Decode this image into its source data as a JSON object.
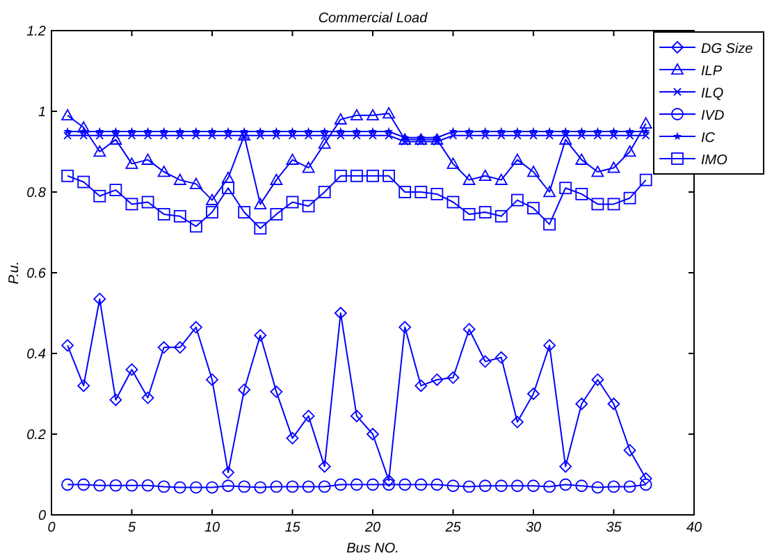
{
  "chart_data": {
    "type": "line",
    "title": "Commercial Load",
    "xlabel": "Bus NO.",
    "ylabel": "P.u.",
    "x": [
      1,
      2,
      3,
      4,
      5,
      6,
      7,
      8,
      9,
      10,
      11,
      12,
      13,
      14,
      15,
      16,
      17,
      18,
      19,
      20,
      21,
      22,
      23,
      24,
      25,
      26,
      27,
      28,
      29,
      30,
      31,
      32,
      33,
      34,
      35,
      36,
      37
    ],
    "series": [
      {
        "name": "DG Size",
        "color": "#0000ff",
        "marker": "diamond",
        "values": [
          0.42,
          0.32,
          0.535,
          0.285,
          0.36,
          0.29,
          0.415,
          0.415,
          0.465,
          0.335,
          0.105,
          0.31,
          0.445,
          0.305,
          0.19,
          0.245,
          0.12,
          0.5,
          0.245,
          0.2,
          0.085,
          0.465,
          0.32,
          0.335,
          0.34,
          0.46,
          0.38,
          0.39,
          0.23,
          0.3,
          0.42,
          0.12,
          0.275,
          0.335,
          0.275,
          0.16,
          0.09
        ]
      },
      {
        "name": "ILP",
        "color": "#0000ff",
        "marker": "triangle",
        "values": [
          0.99,
          0.96,
          0.9,
          0.93,
          0.87,
          0.88,
          0.85,
          0.83,
          0.82,
          0.78,
          0.835,
          0.94,
          0.77,
          0.83,
          0.88,
          0.86,
          0.92,
          0.98,
          0.99,
          0.99,
          0.995,
          0.93,
          0.93,
          0.93,
          0.87,
          0.83,
          0.84,
          0.83,
          0.88,
          0.85,
          0.8,
          0.93,
          0.88,
          0.85,
          0.86,
          0.9,
          0.97
        ]
      },
      {
        "name": "ILQ",
        "color": "#0000ff",
        "marker": "cross",
        "values": [
          0.94,
          0.94,
          0.94,
          0.94,
          0.94,
          0.94,
          0.94,
          0.94,
          0.94,
          0.94,
          0.94,
          0.94,
          0.94,
          0.94,
          0.94,
          0.94,
          0.94,
          0.94,
          0.94,
          0.94,
          0.94,
          0.925,
          0.925,
          0.925,
          0.94,
          0.94,
          0.94,
          0.94,
          0.94,
          0.94,
          0.94,
          0.94,
          0.94,
          0.94,
          0.94,
          0.94,
          0.94
        ]
      },
      {
        "name": "IVD",
        "color": "#0000ff",
        "marker": "circle",
        "values": [
          0.075,
          0.075,
          0.073,
          0.073,
          0.073,
          0.073,
          0.07,
          0.068,
          0.068,
          0.068,
          0.072,
          0.07,
          0.068,
          0.07,
          0.07,
          0.07,
          0.07,
          0.075,
          0.075,
          0.075,
          0.075,
          0.075,
          0.075,
          0.075,
          0.072,
          0.07,
          0.072,
          0.072,
          0.072,
          0.072,
          0.07,
          0.075,
          0.072,
          0.068,
          0.07,
          0.07,
          0.075
        ]
      },
      {
        "name": "IC",
        "color": "#0000ff",
        "marker": "star",
        "values": [
          0.95,
          0.95,
          0.95,
          0.95,
          0.95,
          0.95,
          0.95,
          0.95,
          0.95,
          0.95,
          0.95,
          0.95,
          0.95,
          0.95,
          0.95,
          0.95,
          0.95,
          0.95,
          0.95,
          0.95,
          0.95,
          0.935,
          0.935,
          0.935,
          0.95,
          0.95,
          0.95,
          0.95,
          0.95,
          0.95,
          0.95,
          0.95,
          0.95,
          0.95,
          0.95,
          0.95,
          0.95
        ]
      },
      {
        "name": "IMO",
        "color": "#0000ff",
        "marker": "square",
        "values": [
          0.84,
          0.825,
          0.79,
          0.805,
          0.77,
          0.775,
          0.745,
          0.74,
          0.715,
          0.75,
          0.81,
          0.75,
          0.71,
          0.745,
          0.775,
          0.765,
          0.8,
          0.84,
          0.84,
          0.84,
          0.84,
          0.8,
          0.8,
          0.795,
          0.775,
          0.745,
          0.75,
          0.74,
          0.78,
          0.76,
          0.72,
          0.81,
          0.795,
          0.77,
          0.77,
          0.785,
          0.83
        ]
      }
    ],
    "xlim": [
      0,
      40
    ],
    "xticks": [
      0,
      5,
      10,
      15,
      20,
      25,
      30,
      35,
      40
    ],
    "ylim": [
      0,
      1.2
    ],
    "yticks": [
      0,
      0.2,
      0.4,
      0.6,
      0.8,
      1,
      1.2
    ],
    "legend": "top right",
    "grid": false,
    "line_style": "solid"
  }
}
